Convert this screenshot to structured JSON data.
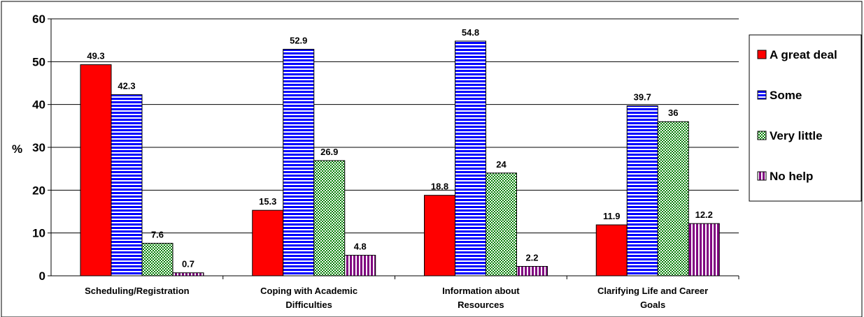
{
  "chart_data": {
    "type": "bar",
    "ylabel": "%",
    "ylim": [
      0,
      60
    ],
    "yticks": [
      "0",
      "10",
      "20",
      "30",
      "40",
      "50",
      "60"
    ],
    "grid": true,
    "legend_position": "right",
    "categories": [
      [
        "Scheduling/Registration"
      ],
      [
        "Coping with Academic",
        "Difficulties"
      ],
      [
        "Information about",
        "Resources"
      ],
      [
        "Clarifying Life and Career",
        "Goals"
      ]
    ],
    "series": [
      {
        "name": "A great deal",
        "color": "#ff0000",
        "pattern": "solid",
        "values": [
          49.3,
          15.3,
          18.8,
          11.9
        ]
      },
      {
        "name": "Some",
        "color": "#0000ff",
        "pattern": "horizontal-stripes",
        "values": [
          42.3,
          52.9,
          54.8,
          39.7
        ]
      },
      {
        "name": "Very little",
        "color": "#008000",
        "pattern": "checker",
        "values": [
          7.6,
          26.9,
          24,
          36
        ]
      },
      {
        "name": "No help",
        "color": "#800080",
        "pattern": "vertical-stripes",
        "values": [
          0.7,
          4.8,
          2.2,
          12.2
        ]
      }
    ]
  }
}
